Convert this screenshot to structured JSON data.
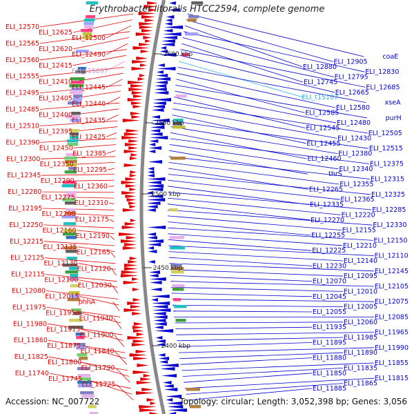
{
  "title": "Erythrobacter litoralis HTCC2594, complete genome",
  "accession": "Accession: NC_007722",
  "summary": "Topology: circular; Length: 3,052,398 bp; Genes: 3,056",
  "colors": {
    "forward": "#e00000",
    "reverse": "#0000d0",
    "rna": "#d88fe0",
    "rna_reverse": "#20b0e0",
    "backbone": "#888888",
    "ticks": "#333333"
  },
  "ticks": [
    {
      "label": "2600 kbp"
    },
    {
      "label": "2550 kbp"
    },
    {
      "label": "2500 kbp"
    },
    {
      "label": "2450 kbp"
    },
    {
      "label": "2400 kbp"
    }
  ],
  "left_labels": [
    {
      "text": "ELI_12570",
      "kind": "gene"
    },
    {
      "text": "ELI_12625",
      "kind": "gene"
    },
    {
      "text": "ELI_12500",
      "kind": "gene"
    },
    {
      "text": "ELI_12565",
      "kind": "gene"
    },
    {
      "text": "ELI_12620",
      "kind": "gene"
    },
    {
      "text": "ELI_12490",
      "kind": "gene"
    },
    {
      "text": "ELI_12560",
      "kind": "gene"
    },
    {
      "text": "ELI_12415",
      "kind": "gene"
    },
    {
      "text": "ELI_t15097",
      "kind": "rna"
    },
    {
      "text": "ELI_12555",
      "kind": "gene"
    },
    {
      "text": "ELI_12410",
      "kind": "gene"
    },
    {
      "text": "ELI_12445",
      "kind": "gene"
    },
    {
      "text": "ELI_12495",
      "kind": "gene"
    },
    {
      "text": "ELI_12405",
      "kind": "gene"
    },
    {
      "text": "ELI_12440",
      "kind": "gene"
    },
    {
      "text": "ELI_12485",
      "kind": "gene"
    },
    {
      "text": "ELI_12400",
      "kind": "gene"
    },
    {
      "text": "ELI_12435",
      "kind": "gene"
    },
    {
      "text": "ELI_12510",
      "kind": "gene"
    },
    {
      "text": "ELI_12395",
      "kind": "gene"
    },
    {
      "text": "ELI_12425",
      "kind": "gene"
    },
    {
      "text": "ELI_12390",
      "kind": "gene"
    },
    {
      "text": "ELI_12450",
      "kind": "gene"
    },
    {
      "text": "ELI_12385",
      "kind": "gene"
    },
    {
      "text": "ELI_12300",
      "kind": "gene"
    },
    {
      "text": "ELI_12350",
      "kind": "gene"
    },
    {
      "text": "ELI_12295",
      "kind": "gene"
    },
    {
      "text": "ELI_12345",
      "kind": "gene"
    },
    {
      "text": "ELI_12290",
      "kind": "gene"
    },
    {
      "text": "ELI_12360",
      "kind": "gene"
    },
    {
      "text": "ELI_12280",
      "kind": "gene"
    },
    {
      "text": "ELI_12275",
      "kind": "gene"
    },
    {
      "text": "ELI_12310",
      "kind": "gene"
    },
    {
      "text": "ELI_12195",
      "kind": "gene"
    },
    {
      "text": "ELI_12200",
      "kind": "gene"
    },
    {
      "text": "ELI_12175",
      "kind": "gene"
    },
    {
      "text": "ELI_12250",
      "kind": "gene"
    },
    {
      "text": "ELI_12160",
      "kind": "gene"
    },
    {
      "text": "ELI_12190",
      "kind": "gene"
    },
    {
      "text": "ELI_12215",
      "kind": "gene"
    },
    {
      "text": "ELI_12135",
      "kind": "gene"
    },
    {
      "text": "ELI_12165",
      "kind": "gene"
    },
    {
      "text": "ELI_12125",
      "kind": "gene"
    },
    {
      "text": "ELI_12130",
      "kind": "gene"
    },
    {
      "text": "ELI_12120",
      "kind": "gene"
    },
    {
      "text": "ELI_12115",
      "kind": "gene"
    },
    {
      "text": "ELI_12100",
      "kind": "gene"
    },
    {
      "text": "ELI_12030",
      "kind": "gene"
    },
    {
      "text": "ELI_12080",
      "kind": "gene"
    },
    {
      "text": "ELI_12015",
      "kind": "gene"
    },
    {
      "text": "phhA",
      "kind": "gene"
    },
    {
      "text": "ELI_11975",
      "kind": "gene"
    },
    {
      "text": "ELI_11950",
      "kind": "gene"
    },
    {
      "text": "ELI_11940",
      "kind": "gene"
    },
    {
      "text": "ELI_11980",
      "kind": "gene"
    },
    {
      "text": "ELI_11915",
      "kind": "gene"
    },
    {
      "text": "ELI_11900",
      "kind": "gene"
    },
    {
      "text": "ELI_11860",
      "kind": "gene"
    },
    {
      "text": "ELI_11875",
      "kind": "gene"
    },
    {
      "text": "ELI_11840",
      "kind": "gene"
    },
    {
      "text": "ELI_11825",
      "kind": "gene"
    },
    {
      "text": "ELI_11800",
      "kind": "gene"
    },
    {
      "text": "ELI_11790",
      "kind": "gene"
    },
    {
      "text": "ELI_11740",
      "kind": "gene"
    },
    {
      "text": "ELI_11745",
      "kind": "gene"
    },
    {
      "text": "ELI_11725",
      "kind": "gene"
    }
  ],
  "right_labels": [
    {
      "text": "coaE",
      "kind": "gene"
    },
    {
      "text": "ELI_12905",
      "kind": "gene"
    },
    {
      "text": "ELI_12880",
      "kind": "gene"
    },
    {
      "text": "ELI_12830",
      "kind": "gene"
    },
    {
      "text": "ELI_12795",
      "kind": "gene"
    },
    {
      "text": "ELI_12745",
      "kind": "gene"
    },
    {
      "text": "ELI_12685",
      "kind": "gene"
    },
    {
      "text": "ELI_12665",
      "kind": "gene"
    },
    {
      "text": "ELI_t15107",
      "kind": "rna"
    },
    {
      "text": "xseA",
      "kind": "gene"
    },
    {
      "text": "ELI_12580",
      "kind": "gene"
    },
    {
      "text": "ELI_12585",
      "kind": "gene"
    },
    {
      "text": "purH",
      "kind": "gene"
    },
    {
      "text": "ELI_12480",
      "kind": "gene"
    },
    {
      "text": "ELI_12545",
      "kind": "gene"
    },
    {
      "text": "ELI_12505",
      "kind": "gene"
    },
    {
      "text": "ELI_12430",
      "kind": "gene"
    },
    {
      "text": "ELI_12455",
      "kind": "gene"
    },
    {
      "text": "ELI_12515",
      "kind": "gene"
    },
    {
      "text": "ELI_12380",
      "kind": "gene"
    },
    {
      "text": "ELI_12460",
      "kind": "gene"
    },
    {
      "text": "ELI_12375",
      "kind": "gene"
    },
    {
      "text": "ELI_12340",
      "kind": "gene"
    },
    {
      "text": "thrS",
      "kind": "gene"
    },
    {
      "text": "ELI_12315",
      "kind": "gene"
    },
    {
      "text": "ELI_12355",
      "kind": "gene"
    },
    {
      "text": "ELI_12265",
      "kind": "gene"
    },
    {
      "text": "ELI_12325",
      "kind": "gene"
    },
    {
      "text": "ELI_12365",
      "kind": "gene"
    },
    {
      "text": "ELI_12335",
      "kind": "gene"
    },
    {
      "text": "ELI_12285",
      "kind": "gene"
    },
    {
      "text": "ELI_12220",
      "kind": "gene"
    },
    {
      "text": "ELI_12270",
      "kind": "gene"
    },
    {
      "text": "ELI_12330",
      "kind": "gene"
    },
    {
      "text": "ELI_12155",
      "kind": "gene"
    },
    {
      "text": "ELI_12255",
      "kind": "gene"
    },
    {
      "text": "ELI_12150",
      "kind": "gene"
    },
    {
      "text": "ELI_12210",
      "kind": "gene"
    },
    {
      "text": "ELI_12225",
      "kind": "gene"
    },
    {
      "text": "ELI_12110",
      "kind": "gene"
    },
    {
      "text": "ELI_12140",
      "kind": "gene"
    },
    {
      "text": "ELI_12230",
      "kind": "gene"
    },
    {
      "text": "ELI_12145",
      "kind": "gene"
    },
    {
      "text": "ELI_12095",
      "kind": "gene"
    },
    {
      "text": "ELI_12070",
      "kind": "gene"
    },
    {
      "text": "ELI_12105",
      "kind": "gene"
    },
    {
      "text": "ELI_12010",
      "kind": "gene"
    },
    {
      "text": "ELI_12045",
      "kind": "gene"
    },
    {
      "text": "ELI_12075",
      "kind": "gene"
    },
    {
      "text": "ELI_12005",
      "kind": "gene"
    },
    {
      "text": "ELI_12055",
      "kind": "gene"
    },
    {
      "text": "ELI_12085",
      "kind": "gene"
    },
    {
      "text": "ELI_12060",
      "kind": "gene"
    },
    {
      "text": "ELI_11935",
      "kind": "gene"
    },
    {
      "text": "ELI_11965",
      "kind": "gene"
    },
    {
      "text": "ELI_11985",
      "kind": "gene"
    },
    {
      "text": "ELI_11895",
      "kind": "gene"
    },
    {
      "text": "ELI_11990",
      "kind": "gene"
    },
    {
      "text": "ELI_11890",
      "kind": "gene"
    },
    {
      "text": "ELI_11880",
      "kind": "gene"
    },
    {
      "text": "ELI_11855",
      "kind": "gene"
    },
    {
      "text": "ELI_11835",
      "kind": "gene"
    },
    {
      "text": "ELI_11850",
      "kind": "gene"
    },
    {
      "text": "ELI_11815",
      "kind": "gene"
    },
    {
      "text": "ELI_11865",
      "kind": "gene"
    },
    {
      "text": "ELI_11885",
      "kind": "gene"
    }
  ]
}
